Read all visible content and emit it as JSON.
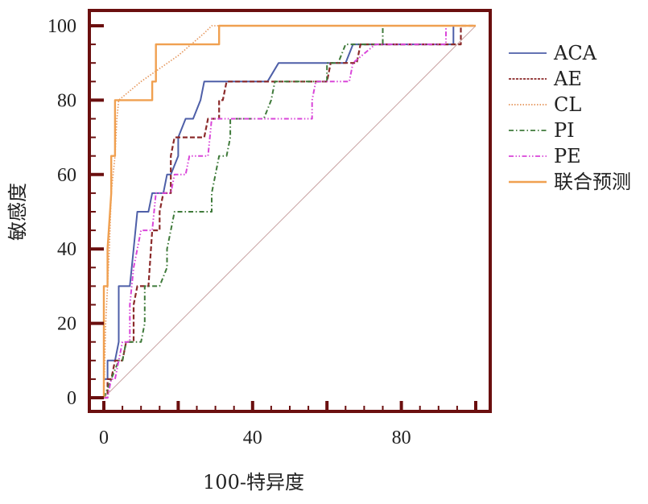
{
  "chart_data": {
    "type": "line",
    "title": "",
    "xlabel": "100-特异度",
    "ylabel": "敏感度",
    "xlim": [
      0,
      100
    ],
    "ylim": [
      0,
      100
    ],
    "x_ticks": [
      0,
      40,
      80
    ],
    "y_ticks": [
      0,
      20,
      40,
      60,
      80,
      100
    ],
    "x_minor_step": 5,
    "y_minor_step": 5,
    "grid": false,
    "legend_position": "right",
    "frame_color": "#6b0f0f",
    "reference_line": {
      "name": "diagonal",
      "color": "#c9a3a3",
      "points": [
        [
          0,
          0
        ],
        [
          100,
          100
        ]
      ]
    },
    "series": [
      {
        "name": "ACA",
        "color": "#4e5fa8",
        "dash": "solid",
        "points": [
          [
            0,
            0
          ],
          [
            0,
            5
          ],
          [
            1,
            5
          ],
          [
            1,
            10
          ],
          [
            3,
            10
          ],
          [
            4,
            15
          ],
          [
            4,
            30
          ],
          [
            7,
            30
          ],
          [
            8,
            40
          ],
          [
            9,
            50
          ],
          [
            12,
            50
          ],
          [
            13,
            55
          ],
          [
            16,
            55
          ],
          [
            17,
            60
          ],
          [
            18,
            60
          ],
          [
            20,
            65
          ],
          [
            20,
            70
          ],
          [
            22,
            75
          ],
          [
            24,
            75
          ],
          [
            26,
            80
          ],
          [
            27,
            85
          ],
          [
            40,
            85
          ],
          [
            44,
            85
          ],
          [
            47,
            90
          ],
          [
            55,
            90
          ],
          [
            65,
            90
          ],
          [
            67,
            95
          ],
          [
            94,
            95
          ],
          [
            94,
            100
          ],
          [
            100,
            100
          ]
        ]
      },
      {
        "name": "AE",
        "color": "#8b2a2a",
        "dash": "dashed",
        "points": [
          [
            0,
            0
          ],
          [
            1,
            0
          ],
          [
            1,
            5
          ],
          [
            2,
            5
          ],
          [
            3,
            10
          ],
          [
            5,
            10
          ],
          [
            6,
            15
          ],
          [
            8,
            15
          ],
          [
            8,
            25
          ],
          [
            9,
            30
          ],
          [
            12,
            30
          ],
          [
            13,
            45
          ],
          [
            15,
            45
          ],
          [
            15,
            50
          ],
          [
            16,
            55
          ],
          [
            18,
            55
          ],
          [
            18,
            65
          ],
          [
            19,
            70
          ],
          [
            27,
            70
          ],
          [
            28,
            75
          ],
          [
            31,
            75
          ],
          [
            31,
            80
          ],
          [
            32,
            80
          ],
          [
            33,
            85
          ],
          [
            46,
            85
          ],
          [
            60,
            85
          ],
          [
            61,
            90
          ],
          [
            68,
            90
          ],
          [
            69,
            95
          ],
          [
            96,
            95
          ],
          [
            96,
            100
          ],
          [
            100,
            100
          ]
        ]
      },
      {
        "name": "CL",
        "color": "#e5955a",
        "dash": "dotted",
        "points": [
          [
            0,
            0
          ],
          [
            0.5,
            20
          ],
          [
            1,
            30
          ],
          [
            1.5,
            40
          ],
          [
            2,
            55
          ],
          [
            3,
            65
          ],
          [
            3.5,
            75
          ],
          [
            4,
            80
          ],
          [
            10,
            85
          ],
          [
            20,
            92
          ],
          [
            27,
            98
          ],
          [
            29,
            100
          ],
          [
            100,
            100
          ]
        ]
      },
      {
        "name": "PI",
        "color": "#3f7a3a",
        "dash": "dashdot",
        "points": [
          [
            0,
            0
          ],
          [
            2,
            5
          ],
          [
            4,
            10
          ],
          [
            5,
            10
          ],
          [
            6,
            15
          ],
          [
            10,
            15
          ],
          [
            11,
            20
          ],
          [
            11,
            30
          ],
          [
            15,
            30
          ],
          [
            17,
            35
          ],
          [
            17,
            40
          ],
          [
            18,
            45
          ],
          [
            19,
            50
          ],
          [
            29,
            50
          ],
          [
            29,
            55
          ],
          [
            30,
            60
          ],
          [
            31,
            65
          ],
          [
            33,
            65
          ],
          [
            34,
            70
          ],
          [
            34,
            75
          ],
          [
            43,
            75
          ],
          [
            45,
            80
          ],
          [
            46,
            85
          ],
          [
            49,
            85
          ],
          [
            60,
            85
          ],
          [
            60,
            90
          ],
          [
            63,
            90
          ],
          [
            65,
            95
          ],
          [
            75,
            95
          ],
          [
            75,
            100
          ],
          [
            100,
            100
          ]
        ]
      },
      {
        "name": "PE",
        "color": "#d946d9",
        "dash": "dashdotdot",
        "points": [
          [
            0,
            0
          ],
          [
            1,
            0
          ],
          [
            2,
            5
          ],
          [
            3,
            5
          ],
          [
            4,
            10
          ],
          [
            5,
            15
          ],
          [
            7,
            15
          ],
          [
            7,
            25
          ],
          [
            8,
            35
          ],
          [
            9,
            40
          ],
          [
            10,
            45
          ],
          [
            13,
            45
          ],
          [
            14,
            55
          ],
          [
            18,
            55
          ],
          [
            19,
            60
          ],
          [
            22,
            60
          ],
          [
            23,
            65
          ],
          [
            28,
            65
          ],
          [
            29,
            75
          ],
          [
            56,
            75
          ],
          [
            56,
            80
          ],
          [
            57,
            85
          ],
          [
            66,
            85
          ],
          [
            67,
            90
          ],
          [
            73,
            95
          ],
          [
            92,
            95
          ],
          [
            92,
            100
          ],
          [
            100,
            100
          ]
        ]
      },
      {
        "name": "联合预测",
        "color": "#f0a050",
        "dash": "solid",
        "points": [
          [
            0,
            0
          ],
          [
            0,
            30
          ],
          [
            1,
            30
          ],
          [
            1,
            40
          ],
          [
            2,
            55
          ],
          [
            2,
            65
          ],
          [
            3,
            65
          ],
          [
            3,
            80
          ],
          [
            13,
            80
          ],
          [
            13,
            85
          ],
          [
            14,
            85
          ],
          [
            14,
            95
          ],
          [
            31,
            95
          ],
          [
            31,
            100
          ],
          [
            100,
            100
          ]
        ]
      }
    ]
  }
}
